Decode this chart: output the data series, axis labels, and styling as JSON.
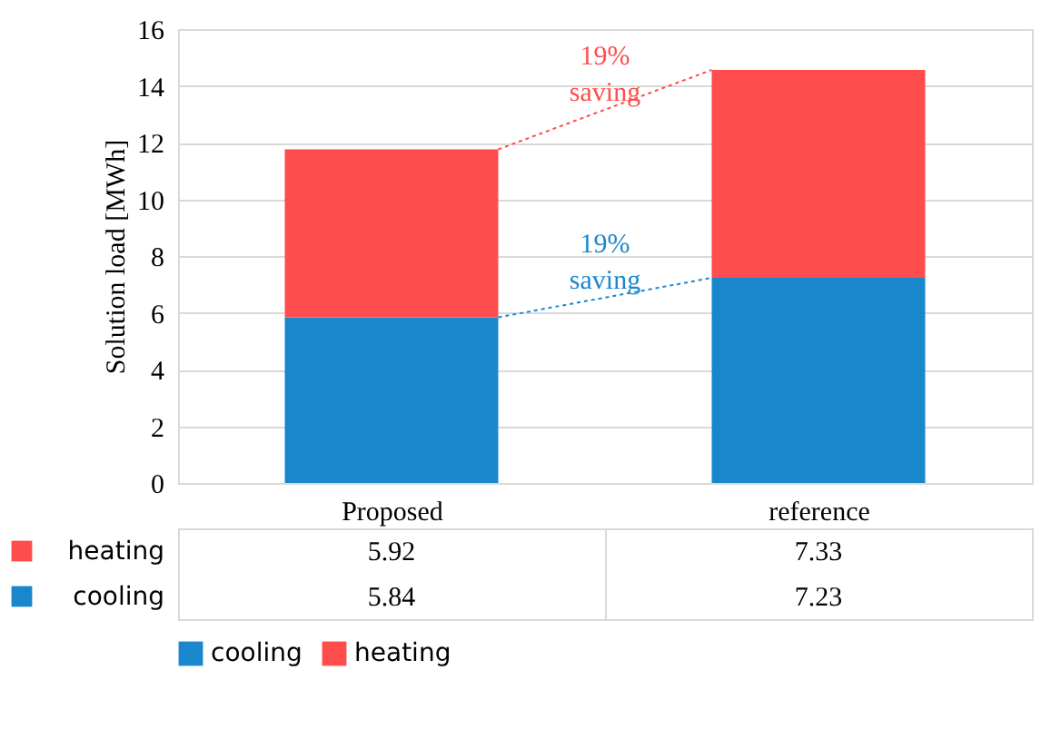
{
  "chart_data": {
    "type": "bar",
    "stacked": true,
    "ylabel": "Solution load [MWh]",
    "categories": [
      "Proposed",
      "reference"
    ],
    "series": [
      {
        "name": "cooling",
        "color": "#1a87cc",
        "values": [
          5.84,
          7.23
        ]
      },
      {
        "name": "heating",
        "color": "#ff4c4c",
        "values": [
          5.92,
          7.33
        ]
      }
    ],
    "ylim": [
      0,
      16
    ],
    "yticks": [
      0,
      2,
      4,
      6,
      8,
      10,
      12,
      14,
      16
    ],
    "grid": "y",
    "legend": "bottom",
    "data_labels": true,
    "annotations": [
      "19% saving",
      "19% saving"
    ]
  }
}
